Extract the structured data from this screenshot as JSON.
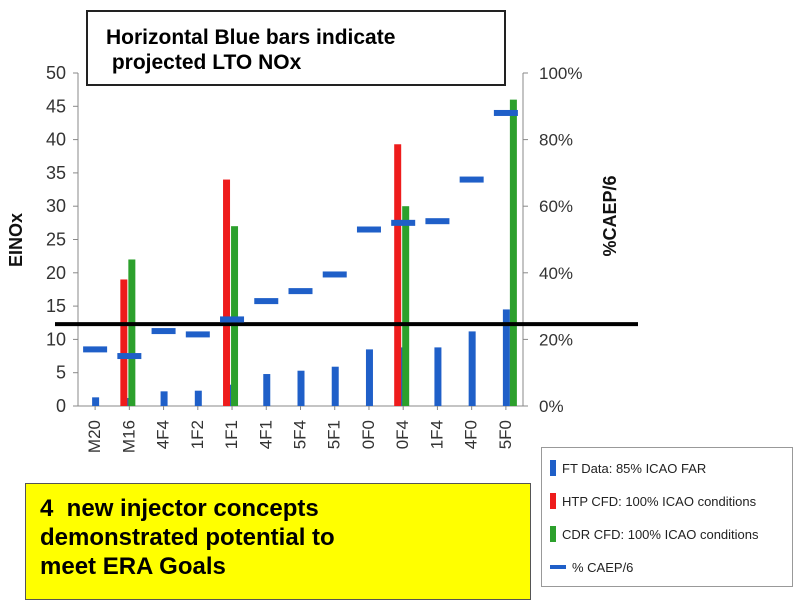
{
  "chart_data": {
    "type": "bar",
    "categories": [
      "M20",
      "M16",
      "4F4",
      "1F2",
      "1F1",
      "4F1",
      "5F4",
      "5F1",
      "0F0",
      "0F4",
      "1F4",
      "4F0",
      "5F0"
    ],
    "series": [
      {
        "name": "FT Data: 85% ICAO FAR",
        "type": "bar",
        "axis": "left",
        "color": "#1f5fc8",
        "values": [
          1.3,
          1.2,
          2.2,
          2.3,
          3.2,
          4.8,
          5.3,
          5.9,
          8.5,
          8.8,
          8.8,
          11.2,
          14.5
        ]
      },
      {
        "name": "HTP CFD:  100% ICAO conditions",
        "type": "bar",
        "axis": "left",
        "color": "#ee1c1c",
        "values": [
          null,
          19,
          null,
          null,
          34,
          null,
          null,
          null,
          null,
          39.3,
          null,
          null,
          null
        ]
      },
      {
        "name": "CDR CFD:  100% ICAO conditions",
        "type": "bar",
        "axis": "left",
        "color": "#2ca02c",
        "values": [
          null,
          22,
          null,
          null,
          27,
          null,
          null,
          null,
          null,
          30,
          null,
          null,
          46
        ]
      },
      {
        "name": "% CAEP/6",
        "type": "dash",
        "axis": "right",
        "color": "#1f5fc8",
        "values": [
          17,
          15,
          22.5,
          21.5,
          26,
          31.5,
          34.5,
          39.5,
          53,
          55,
          55.5,
          68,
          88
        ]
      }
    ],
    "left_axis": {
      "label": "EINOx",
      "min": 0,
      "max": 50,
      "ticks": [
        "0",
        "5",
        "10",
        "15",
        "20",
        "25",
        "30",
        "35",
        "40",
        "45",
        "50"
      ]
    },
    "right_axis": {
      "label": "%CAEP/6",
      "min": 0,
      "max": 100,
      "ticks": [
        "0%",
        "20%",
        "40%",
        "60%",
        "80%",
        "100%"
      ]
    },
    "reference_line": {
      "value": 12.3,
      "axis": "left",
      "color": "#000000"
    },
    "grid": false,
    "legend_position": "bottom-right"
  },
  "annotations": {
    "callout": "Horizontal Blue bars indicate\n projected LTO NOx",
    "goals": "4  new injector concepts\ndemonstrated potential to\nmeet ERA Goals"
  }
}
